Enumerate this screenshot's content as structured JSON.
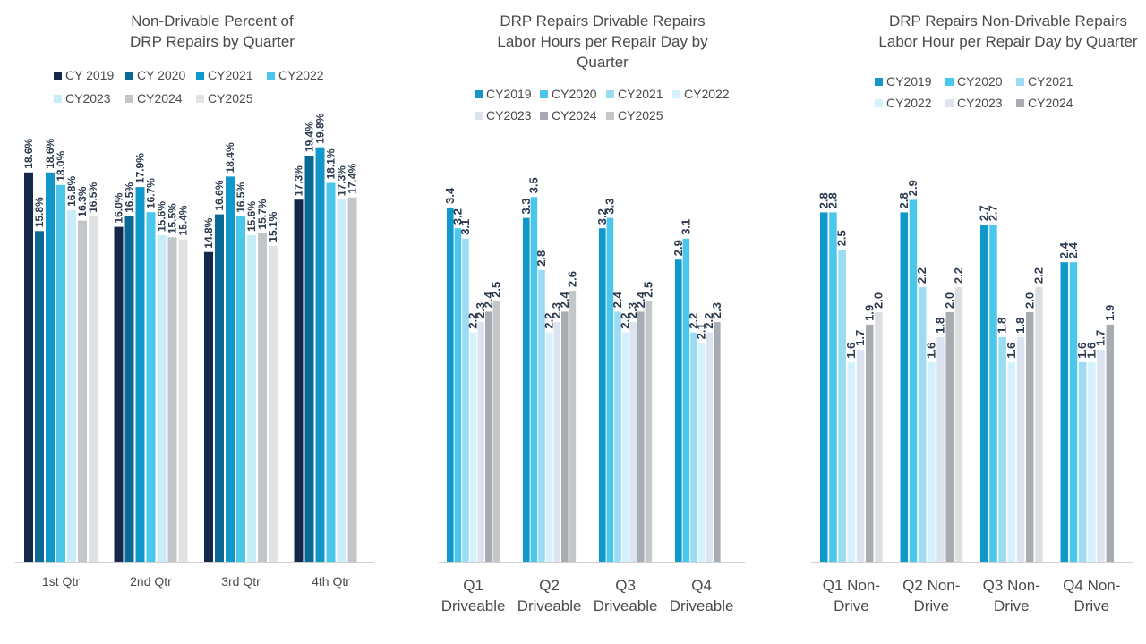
{
  "chart_data": [
    {
      "type": "bar",
      "title": "Non-Drivable Percent of\nDRP Repairs by Quarter",
      "categories": [
        "1st Qtr",
        "2nd Qtr",
        "3rd Qtr",
        "4th Qtr"
      ],
      "series": [
        {
          "name": "CY 2019",
          "color": "#14284b",
          "values": [
            18.6,
            16.0,
            14.8,
            17.3
          ]
        },
        {
          "name": "CY 2020",
          "color": "#0b6a94",
          "values": [
            15.8,
            16.5,
            16.6,
            19.4
          ]
        },
        {
          "name": "CY2021",
          "color": "#0f98c9",
          "values": [
            18.6,
            17.9,
            18.4,
            19.8
          ]
        },
        {
          "name": "CY2022",
          "color": "#4cc7ec",
          "values": [
            18.0,
            16.7,
            16.5,
            18.1
          ]
        },
        {
          "name": "CY2023",
          "color": "#c9ecf9",
          "values": [
            16.8,
            15.6,
            15.6,
            17.3
          ]
        },
        {
          "name": "CY2024",
          "color": "#c2c6c9",
          "values": [
            16.3,
            15.5,
            15.7,
            17.4
          ]
        },
        {
          "name": "CY2025",
          "color": "#e1e2e3",
          "values": [
            16.5,
            15.4,
            15.1,
            null
          ]
        }
      ],
      "labels": [
        [
          "18.6%",
          "16.0%",
          "14.8%",
          "17.3%"
        ],
        [
          "15.8%",
          "16.5%",
          "16.6%",
          "19.4%"
        ],
        [
          "18.6%",
          "17.9%",
          "18.4%",
          "19.8%"
        ],
        [
          "18.0%",
          "16.7%",
          "16.5%",
          "18.1%"
        ],
        [
          "16.8%",
          "15.6%",
          "15.6%",
          "17.3%"
        ],
        [
          "16.3%",
          "15.5%",
          "15.7%",
          "17.4%"
        ],
        [
          "16.5%",
          "15.4%",
          "15.1%",
          ""
        ]
      ],
      "ylim": [
        0,
        20
      ],
      "legend": "top",
      "grid": false
    },
    {
      "type": "bar",
      "title": "DRP Repairs Drivable Repairs\nLabor Hours per Repair Day by\nQuarter",
      "categories": [
        "Q1\nDriveable",
        "Q2\nDriveable",
        "Q3\nDriveable",
        "Q4\nDriveable"
      ],
      "series": [
        {
          "name": "CY2019",
          "color": "#0f98c9",
          "values": [
            3.4,
            3.3,
            3.2,
            2.9
          ]
        },
        {
          "name": "CY2020",
          "color": "#4cc7ec",
          "values": [
            3.2,
            3.5,
            3.3,
            3.1
          ]
        },
        {
          "name": "CY2021",
          "color": "#9bdcf4",
          "values": [
            3.1,
            2.8,
            2.4,
            2.2
          ]
        },
        {
          "name": "CY2022",
          "color": "#d5f1fb",
          "values": [
            2.2,
            2.2,
            2.2,
            2.1
          ]
        },
        {
          "name": "CY2023",
          "color": "#dde4ef",
          "values": [
            2.3,
            2.3,
            2.3,
            2.2
          ]
        },
        {
          "name": "CY2024",
          "color": "#a6acb1",
          "values": [
            2.4,
            2.4,
            2.4,
            2.3
          ]
        },
        {
          "name": "CY2025",
          "color": "#c3c7ca",
          "values": [
            2.5,
            2.6,
            2.5,
            null
          ]
        }
      ],
      "labels": [
        [
          "3.4",
          "3.3",
          "3.2",
          "2.9"
        ],
        [
          "3.2",
          "3.5",
          "3.3",
          "3.1"
        ],
        [
          "3.1",
          "2.8",
          "2.4",
          "2.2"
        ],
        [
          "2.2",
          "2.2",
          "2.2",
          "2.1"
        ],
        [
          "2.3",
          "2.3",
          "2.3",
          "2.2"
        ],
        [
          "2.4",
          "2.4",
          "2.4",
          "2.3"
        ],
        [
          "2.5",
          "2.6",
          "2.5",
          ""
        ]
      ],
      "ylim": [
        0,
        3.6
      ],
      "legend": "top",
      "grid": false
    },
    {
      "type": "bar",
      "title": "DRP Repairs Non-Drivable Repairs\nLabor Hour per Repair Day by Quarter",
      "categories": [
        "Q1 Non-\nDrive",
        "Q2 Non-\nDrive",
        "Q3 Non-\nDrive",
        "Q4 Non-\nDrive"
      ],
      "series": [
        {
          "name": "CY2019",
          "color": "#0f98c9",
          "values": [
            2.8,
            2.8,
            2.7,
            2.4
          ]
        },
        {
          "name": "CY2020",
          "color": "#4cc7ec",
          "values": [
            2.8,
            2.9,
            2.7,
            2.4
          ]
        },
        {
          "name": "CY2021",
          "color": "#9bdcf4",
          "values": [
            2.5,
            2.2,
            1.8,
            1.6
          ]
        },
        {
          "name": "CY2022",
          "color": "#d5f1fb",
          "values": [
            1.6,
            1.6,
            1.6,
            1.6
          ]
        },
        {
          "name": "CY2023",
          "color": "#dde4ef",
          "values": [
            1.7,
            1.8,
            1.8,
            1.7
          ]
        },
        {
          "name": "CY2024",
          "color": "#a6acb1",
          "values": [
            1.9,
            2.0,
            2.0,
            1.9
          ]
        },
        {
          "name": "",
          "color": "#dcdedf",
          "values": [
            2.0,
            2.2,
            2.2,
            null
          ]
        }
      ],
      "labels": [
        [
          "2.8",
          "2.8",
          "2.7",
          "2.4"
        ],
        [
          "2.8",
          "2.9",
          "2.7",
          "2.4"
        ],
        [
          "2.5",
          "2.2",
          "1.8",
          "1.6"
        ],
        [
          "1.6",
          "1.6",
          "1.6",
          "1.6"
        ],
        [
          "1.7",
          "1.8",
          "1.8",
          "1.7"
        ],
        [
          "1.9",
          "2.0",
          "2.0",
          "1.9"
        ],
        [
          "2.0",
          "2.2",
          "2.2",
          ""
        ]
      ],
      "ylim": [
        0,
        3.3
      ],
      "legend": "top",
      "grid": false
    }
  ]
}
